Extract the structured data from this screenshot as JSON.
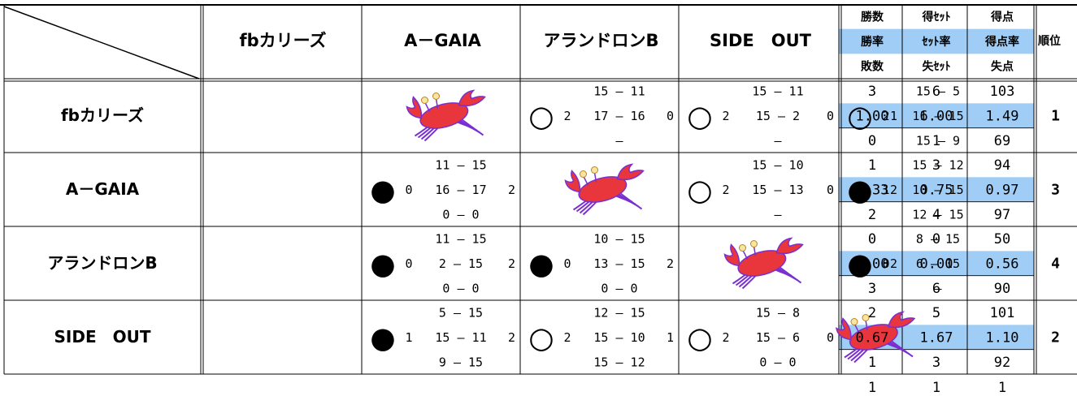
{
  "header": {
    "teams": [
      "fbカリーズ",
      "A－GAIA",
      "アランドロンB",
      "SIDE　OUT"
    ],
    "stat_labels": [
      [
        "勝数",
        "得ｾｯﾄ",
        "得点"
      ],
      [
        "勝率",
        "ｾｯﾄ率",
        "得点率"
      ],
      [
        "敗数",
        "失ｾｯﾄ",
        "失点"
      ]
    ],
    "rank_label": "順位"
  },
  "rows": [
    {
      "team": "fbカリーズ",
      "cells": [
        null,
        {
          "result": "○",
          "scores": [
            "15 — 11",
            "17 — 16",
            "—"
          ],
          "sets_won": "2",
          "sets_lost": "0"
        },
        {
          "result": "○",
          "scores": [
            "15 — 11",
            "15 — 2",
            "—"
          ],
          "sets_won": "2",
          "sets_lost": "0"
        },
        {
          "result": "○",
          "scores": [
            "15 — 5",
            "11 — 15",
            "15 — 9"
          ],
          "sets_won": "2",
          "sets_lost": "1"
        }
      ],
      "stats": [
        [
          "3",
          "6",
          "103"
        ],
        [
          "1.00",
          "6.00",
          "1.49"
        ],
        [
          "0",
          "1",
          "69"
        ]
      ],
      "rank": "1"
    },
    {
      "team": "A－GAIA",
      "cells": [
        {
          "result": "●",
          "scores": [
            "11 — 15",
            "16 — 17",
            "0 — 0"
          ],
          "sets_won": "0",
          "sets_lost": "2"
        },
        null,
        {
          "result": "○",
          "scores": [
            "15 — 10",
            "15 — 13",
            "—"
          ],
          "sets_won": "2",
          "sets_lost": "0"
        },
        {
          "result": "●",
          "scores": [
            "15 — 12",
            "10 — 15",
            "12 — 15"
          ],
          "sets_won": "1",
          "sets_lost": "2"
        }
      ],
      "stats": [
        [
          "1",
          "3",
          "94"
        ],
        [
          "0.33",
          "0.75",
          "0.97"
        ],
        [
          "2",
          "4",
          "97"
        ]
      ],
      "rank": "3"
    },
    {
      "team": "アランドロンB",
      "cells": [
        {
          "result": "●",
          "scores": [
            "11 — 15",
            "2 — 15",
            "0 — 0"
          ],
          "sets_won": "0",
          "sets_lost": "2"
        },
        {
          "result": "●",
          "scores": [
            "10 — 15",
            "13 — 15",
            "0 — 0"
          ],
          "sets_won": "0",
          "sets_lost": "2"
        },
        null,
        {
          "result": "●",
          "scores": [
            "8 — 15",
            "6 — 15",
            "—"
          ],
          "sets_won": "0",
          "sets_lost": "2"
        }
      ],
      "stats": [
        [
          "0",
          "0",
          "50"
        ],
        [
          "0.00",
          "0.00",
          "0.56"
        ],
        [
          "3",
          "6",
          "90"
        ]
      ],
      "rank": "4"
    },
    {
      "team": "SIDE　OUT",
      "cells": [
        {
          "result": "●",
          "scores": [
            "5 — 15",
            "15 — 11",
            "9 — 15"
          ],
          "sets_won": "1",
          "sets_lost": "2"
        },
        {
          "result": "○",
          "scores": [
            "12 — 15",
            "15 — 10",
            "15 — 12"
          ],
          "sets_won": "2",
          "sets_lost": "1"
        },
        {
          "result": "○",
          "scores": [
            "15 — 8",
            "15 — 6",
            "0 — 0"
          ],
          "sets_won": "2",
          "sets_lost": "0"
        },
        null
      ],
      "stats": [
        [
          "2",
          "5",
          "101"
        ],
        [
          "0.67",
          "1.67",
          "1.10"
        ],
        [
          "1",
          "3",
          "92"
        ]
      ],
      "rank": "2"
    }
  ],
  "footer": [
    "1",
    "1",
    "1"
  ]
}
